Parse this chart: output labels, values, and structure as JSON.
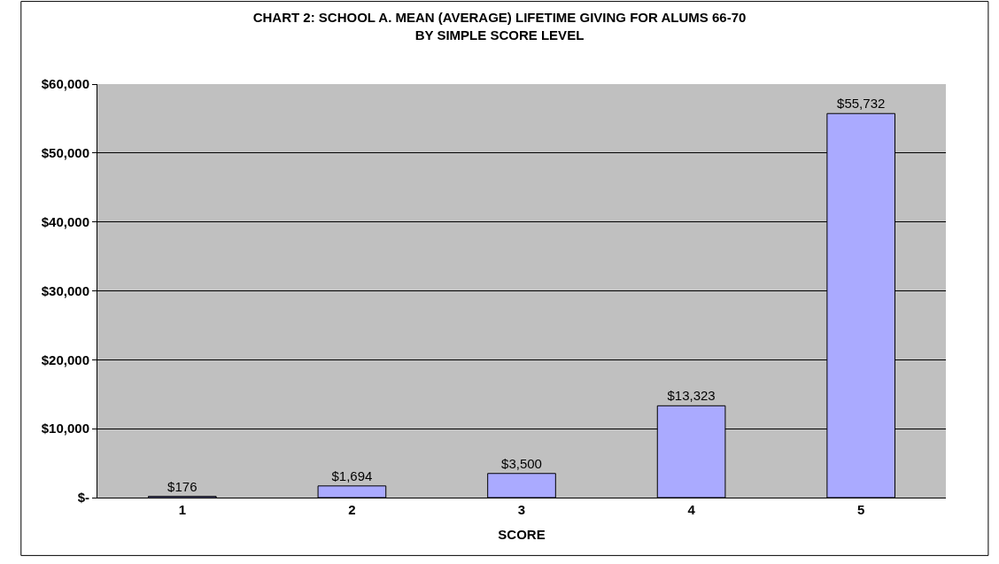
{
  "chart_data": {
    "type": "bar",
    "title": "CHART 2: SCHOOL A. MEAN (AVERAGE) LIFETIME GIVING FOR ALUMS 66-70\nBY SIMPLE SCORE LEVEL",
    "xlabel": "SCORE",
    "categories": [
      "1",
      "2",
      "3",
      "4",
      "5"
    ],
    "values": [
      176,
      1694,
      3500,
      13323,
      55732
    ],
    "value_labels": [
      "$176",
      "$1,694",
      "$3,500",
      "$13,323",
      "$55,732"
    ],
    "color": "#aaaaff",
    "ylim": [
      0,
      60000
    ],
    "yticks": [
      {
        "value": 0,
        "label": "$-"
      },
      {
        "value": 10000,
        "label": "$10,000"
      },
      {
        "value": 20000,
        "label": "$20,000"
      },
      {
        "value": 30000,
        "label": "$30,000"
      },
      {
        "value": 40000,
        "label": "$40,000"
      },
      {
        "value": 50000,
        "label": "$50,000"
      },
      {
        "value": 60000,
        "label": "$60,000"
      }
    ],
    "grid": "y",
    "legend": false
  }
}
